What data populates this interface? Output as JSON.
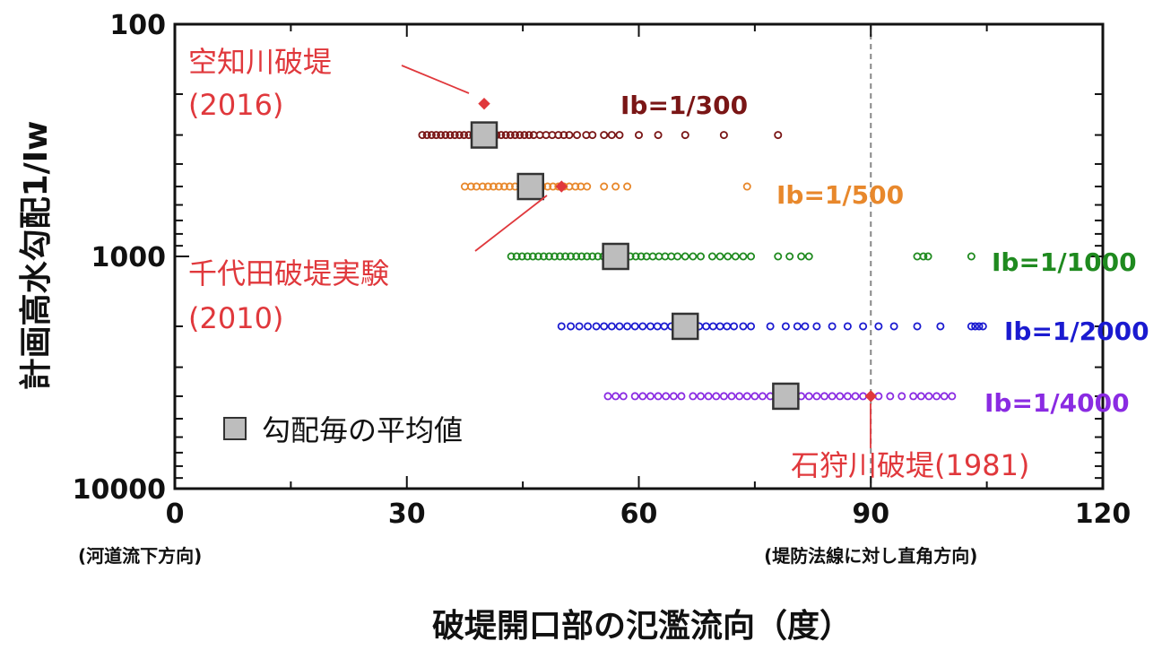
{
  "chart_data": {
    "type": "scatter",
    "title": "",
    "xlabel": "破堤開口部の氾濫流向（度）",
    "ylabel": "計画高水勾配1/Iw",
    "x_ticks": [
      0,
      30,
      60,
      90,
      120
    ],
    "x_tick_sublabels": [
      {
        "x": 0,
        "text": "(河道流下方向)"
      },
      {
        "x": 90,
        "text": "(堤防法線に対し直角方向)"
      }
    ],
    "xlim": [
      0,
      120
    ],
    "y_scale": "log",
    "y_inverted": true,
    "ylim": [
      100,
      10000
    ],
    "y_ticks": [
      100,
      1000,
      10000
    ],
    "reference_line": {
      "x": 90,
      "style": "dashed",
      "color": "#888888"
    },
    "series": [
      {
        "name": "Ib=1/300",
        "y": 300,
        "color": "#7a1616",
        "x": [
          32,
          32.6,
          33.2,
          33.8,
          34.4,
          35,
          35.6,
          36.2,
          36.8,
          37.4,
          38,
          38.6,
          39.2,
          39.8,
          40.4,
          41,
          41.6,
          42.2,
          42.8,
          43.4,
          44,
          44.6,
          45.2,
          45.8,
          46.4,
          47.2,
          48,
          48.8,
          49.6,
          50.3,
          51,
          52,
          53.2,
          54,
          55.5,
          56.5,
          57.5,
          60,
          62.5,
          66,
          71,
          78
        ]
      },
      {
        "name": "Ib=1/500",
        "y": 500,
        "color": "#e8882c",
        "x": [
          37.5,
          38.3,
          39,
          39.8,
          40.5,
          41.2,
          41.9,
          42.6,
          43.3,
          44,
          44.7,
          45.4,
          46.1,
          46.8,
          47.5,
          48.2,
          48.9,
          49.6,
          50.3,
          51,
          51.8,
          52.5,
          53.3,
          55.5,
          57,
          58.5,
          74
        ]
      },
      {
        "name": "Ib=1/1000",
        "y": 1000,
        "color": "#1f8a1f",
        "x": [
          43.5,
          44.2,
          44.9,
          45.6,
          46.3,
          47,
          47.7,
          48.4,
          49.1,
          49.8,
          50.5,
          51.2,
          51.9,
          52.6,
          53.3,
          54,
          54.7,
          55.4,
          56.1,
          56.8,
          57.5,
          58.2,
          58.9,
          59.6,
          60.3,
          61,
          61.8,
          62.6,
          63.4,
          64.2,
          65,
          66,
          67,
          68,
          69.5,
          70.5,
          71.5,
          72.5,
          73.5,
          74.5,
          78,
          79.5,
          81,
          82,
          96,
          96.8,
          97.4,
          103
        ]
      },
      {
        "name": "Ib=1/2000",
        "y": 2000,
        "color": "#1a1ad0",
        "x": [
          50,
          51.2,
          52.3,
          53.4,
          54.5,
          55.5,
          56.5,
          57.5,
          58.5,
          59.5,
          60.5,
          61.5,
          62.4,
          63.3,
          64.2,
          65.1,
          66,
          66.9,
          67.8,
          68.7,
          69.6,
          70.5,
          71.4,
          72.3,
          73.5,
          74.5,
          77,
          79,
          80.5,
          81.5,
          83,
          85,
          87,
          89,
          91,
          93,
          96,
          99,
          103,
          103.5,
          104,
          104.5
        ]
      },
      {
        "name": "Ib=1/4000",
        "y": 4000,
        "color": "#8a2be2",
        "x": [
          56,
          57,
          58,
          59.5,
          60.5,
          61.5,
          62.5,
          63.5,
          64.5,
          65.5,
          67,
          68,
          69,
          70,
          71,
          72,
          73,
          74,
          75,
          76,
          77,
          78,
          79,
          80,
          81,
          82,
          83,
          84,
          85,
          86,
          87,
          88,
          89,
          91,
          92.5,
          94,
          95.5,
          96.5,
          97.5,
          98.5,
          99.5,
          100.5
        ]
      }
    ],
    "averages": [
      {
        "series": "Ib=1/300",
        "x": 40,
        "y": 300
      },
      {
        "series": "Ib=1/500",
        "x": 46,
        "y": 500
      },
      {
        "series": "Ib=1/1000",
        "x": 57,
        "y": 1000
      },
      {
        "series": "Ib=1/2000",
        "x": 66,
        "y": 2000
      },
      {
        "series": "Ib=1/4000",
        "x": 79,
        "y": 4000
      }
    ],
    "events": [
      {
        "label_line1": "空知川破堤",
        "label_line2": "(2016)",
        "x": 40,
        "y": 220
      },
      {
        "label_line1": "千代田破堤実験",
        "label_line2": "(2010)",
        "x": 50,
        "y": 500
      },
      {
        "label_line1": "石狩川破堤(1981)",
        "label_line2": "",
        "x": 90,
        "y": 4000
      }
    ],
    "legend": {
      "label": "勾配毎の平均値",
      "placement": "bottom-left"
    },
    "grid": false,
    "colors": {
      "event": "#e0383c",
      "average_fill": "#bdbdbd",
      "axis": "#111111"
    }
  }
}
